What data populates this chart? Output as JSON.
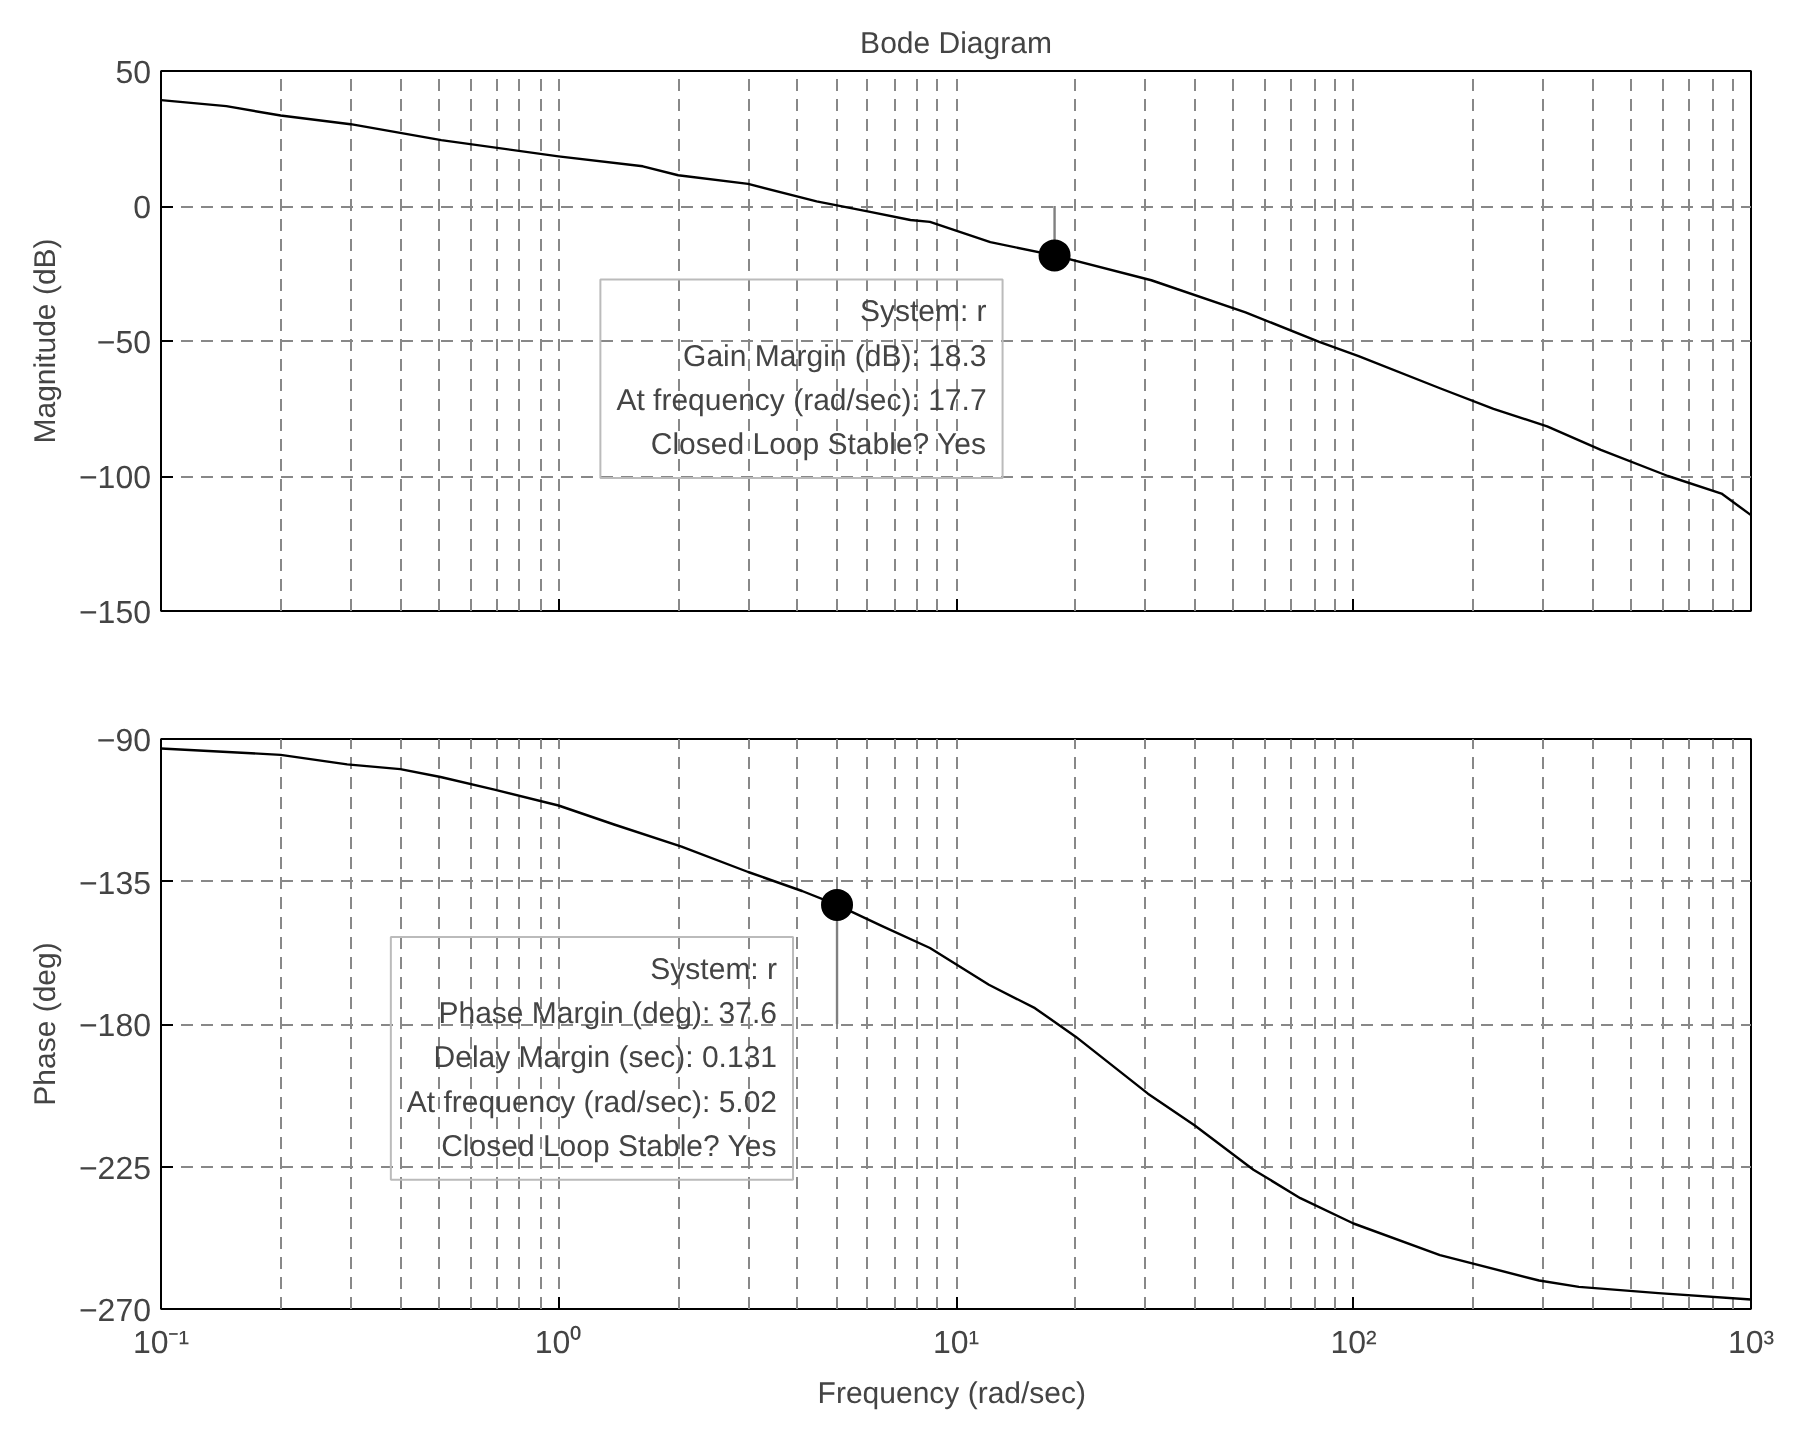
{
  "chart_data": [
    {
      "type": "line",
      "title": "Bode Diagram",
      "ylabel": "Magnitude (dB)",
      "log": "x",
      "grid": true,
      "tick_labels": "y",
      "xlim": [
        0.1,
        1000
      ],
      "xticks": [
        {
          "value": 0.1,
          "label": null
        },
        {
          "value": 1,
          "label": null
        },
        {
          "value": 10,
          "label": null
        },
        {
          "value": 100,
          "label": null
        },
        {
          "value": 1000,
          "label": null
        }
      ],
      "ylim": [
        -150,
        50
      ],
      "yticks": [
        -150,
        -100,
        -50,
        0,
        50
      ],
      "series": [
        {
          "color": "#000000",
          "x": [
            0.1,
            0.146,
            0.2,
            0.3,
            0.507,
            1,
            1.63,
            2,
            3,
            4.46,
            6.08,
            7.68,
            8.6,
            12.2,
            17.7,
            31,
            53.5,
            82,
            103,
            165,
            225,
            307,
            419,
            618,
            843,
            1000
          ],
          "values": [
            39.2,
            37,
            33.5,
            30.3,
            24.4,
            18.4,
            14.7,
            11.4,
            8.2,
            1.7,
            -2.2,
            -5.2,
            -5.9,
            -13.4,
            -18.3,
            -27.5,
            -39.4,
            -50.3,
            -55.6,
            -67.5,
            -75.1,
            -81.6,
            -90.3,
            -100,
            -106.5,
            -114.5
          ]
        },
        {
          "type": "line",
          "color": "#808080",
          "x": [
            17.7,
            17.7
          ],
          "values": [
            -18.3,
            0
          ]
        },
        {
          "type": "scatter",
          "marker": "circle",
          "color": "#000000",
          "x": [
            17.7
          ],
          "values": [
            -18.3
          ]
        }
      ],
      "annotations": [
        {
          "text": "System: r\nGain Margin (dB): 18.3\nAt frequency (rad/sec): 17.7\nClosed Loop Stable? Yes",
          "x": 17.7,
          "y": -18.3
        }
      ]
    },
    {
      "type": "line",
      "xlabel": "Frequency  (rad/sec)",
      "ylabel": "Phase (deg)",
      "log": "x",
      "grid": true,
      "xlim": [
        0.1,
        1000
      ],
      "xticks": [
        {
          "value": 0.1,
          "label": "10⁻¹"
        },
        {
          "value": 1,
          "label": "10⁰"
        },
        {
          "value": 10,
          "label": "10¹"
        },
        {
          "value": 100,
          "label": "10²"
        },
        {
          "value": 1000,
          "label": "10³"
        }
      ],
      "ylim": [
        -270,
        -90
      ],
      "yticks": [
        -270,
        -225,
        -180,
        -135,
        -90
      ],
      "series": [
        {
          "color": "#000000",
          "x": [
            0.1,
            0.2,
            0.294,
            0.4,
            0.505,
            0.69,
            1,
            1.38,
            2.04,
            3,
            4.1,
            5.02,
            6.5,
            8.6,
            12.1,
            15.8,
            20,
            30.4,
            39.8,
            56,
            73.5,
            100,
            165,
            293,
            369,
            585,
            1000
          ],
          "values": [
            -93,
            -95,
            -98,
            -99.5,
            -102,
            -106,
            -111,
            -117,
            -124,
            -132,
            -138,
            -142.4,
            -149,
            -156,
            -167.6,
            -175,
            -184,
            -202,
            -212,
            -226,
            -235,
            -243,
            -253,
            -261,
            -263,
            -265,
            -267
          ]
        },
        {
          "type": "line",
          "color": "#808080",
          "x": [
            5.02,
            5.02
          ],
          "values": [
            -142.4,
            -180
          ]
        },
        {
          "type": "scatter",
          "marker": "circle",
          "color": "#000000",
          "x": [
            5.02
          ],
          "values": [
            -142.4
          ]
        }
      ],
      "annotations": [
        {
          "text": "System: r\nPhase Margin (deg): 37.6\nDelay Margin (sec): 0.131\nAt frequency (rad/sec): 5.02\nClosed Loop Stable? Yes",
          "x": 5.02,
          "y": -142.4
        }
      ]
    }
  ]
}
